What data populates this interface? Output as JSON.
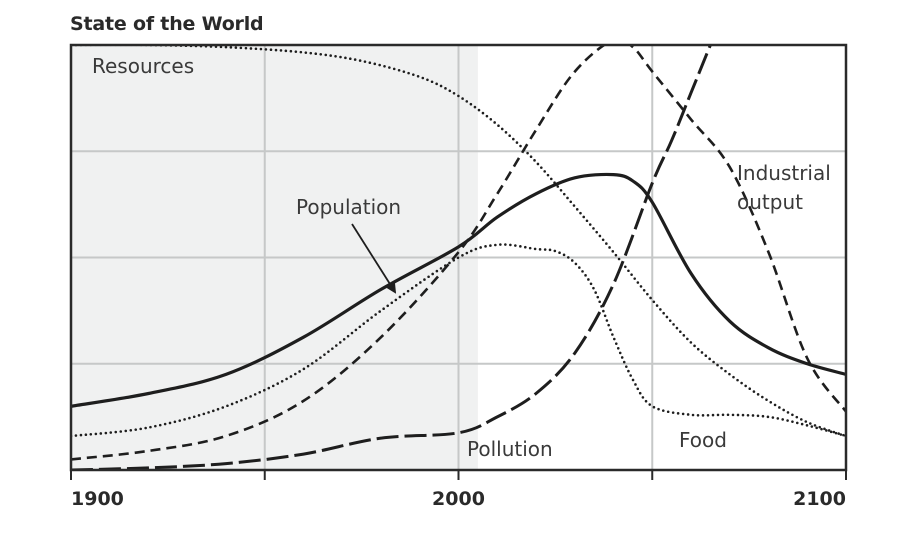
{
  "chart_data": {
    "type": "line",
    "title": "State of the World",
    "xlabel": "",
    "ylabel": "",
    "xlim": [
      1900,
      2100
    ],
    "ylim": [
      0,
      4
    ],
    "x_ticks": [
      "1900",
      "2000",
      "2100"
    ],
    "grid": true,
    "shaded_region": [
      1900,
      2005
    ],
    "series": [
      {
        "name": "Resources",
        "style": "dotted",
        "x": [
          1900,
          1920,
          1940,
          1960,
          1975,
          1990,
          2000,
          2010,
          2020,
          2030,
          2040,
          2050,
          2060,
          2070,
          2080,
          2090,
          2100
        ],
        "y": [
          4.0,
          4.0,
          3.98,
          3.93,
          3.85,
          3.7,
          3.52,
          3.25,
          2.9,
          2.48,
          2.05,
          1.6,
          1.2,
          0.9,
          0.65,
          0.45,
          0.32
        ]
      },
      {
        "name": "Population",
        "style": "solid",
        "x": [
          1900,
          1920,
          1940,
          1960,
          1980,
          2000,
          2010,
          2020,
          2030,
          2040,
          2045,
          2050,
          2060,
          2070,
          2080,
          2090,
          2100
        ],
        "y": [
          0.6,
          0.72,
          0.9,
          1.25,
          1.7,
          2.1,
          2.38,
          2.6,
          2.75,
          2.78,
          2.72,
          2.52,
          1.85,
          1.4,
          1.15,
          1.0,
          0.9
        ]
      },
      {
        "name": "Food",
        "style": "dotted",
        "x": [
          1900,
          1920,
          1940,
          1960,
          1980,
          2000,
          2010,
          2020,
          2025,
          2030,
          2035,
          2040,
          2045,
          2050,
          2060,
          2070,
          2080,
          2090,
          2100
        ],
        "y": [
          0.32,
          0.4,
          0.6,
          0.95,
          1.5,
          2.0,
          2.12,
          2.08,
          2.06,
          1.95,
          1.7,
          1.25,
          0.85,
          0.6,
          0.52,
          0.52,
          0.5,
          0.42,
          0.32
        ]
      },
      {
        "name": "Industrial output",
        "style": "dashed",
        "x": [
          1900,
          1920,
          1940,
          1960,
          1980,
          2000,
          2010,
          2020,
          2030,
          2040,
          2045,
          2050,
          2060,
          2070,
          2080,
          2090,
          2100
        ],
        "y": [
          0.1,
          0.18,
          0.32,
          0.65,
          1.25,
          2.05,
          2.6,
          3.2,
          3.75,
          4.05,
          3.98,
          3.75,
          3.3,
          2.85,
          2.05,
          1.05,
          0.55
        ]
      },
      {
        "name": "Pollution",
        "style": "longdash",
        "x": [
          1900,
          1920,
          1940,
          1960,
          1980,
          2000,
          2010,
          2020,
          2030,
          2040,
          2050,
          2055,
          2060,
          2065
        ],
        "y": [
          0.0,
          0.02,
          0.06,
          0.15,
          0.3,
          0.35,
          0.5,
          0.72,
          1.1,
          1.75,
          2.7,
          3.1,
          3.55,
          4.0
        ]
      }
    ],
    "annotations": [
      "Resources",
      "Population",
      "Industrial",
      "output",
      "Pollution",
      "Food"
    ]
  }
}
